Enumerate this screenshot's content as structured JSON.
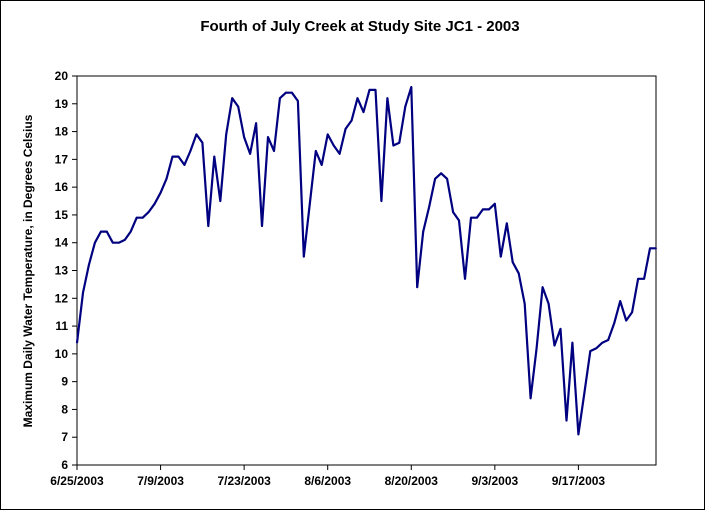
{
  "chart_data": {
    "type": "line",
    "title": "Fourth of July Creek at Study Site JC1 - 2003",
    "xlabel": "",
    "ylabel": "Maximum Daily Water Temperature, in Degrees Celsius",
    "ylim": [
      6,
      20
    ],
    "yticks": [
      "6",
      "7",
      "8",
      "9",
      "10",
      "11",
      "12",
      "13",
      "14",
      "15",
      "16",
      "17",
      "18",
      "19",
      "20"
    ],
    "xlim": [
      "6/25/2003",
      "9/30/2003"
    ],
    "xticks": [
      "6/25/2003",
      "7/9/2003",
      "7/23/2003",
      "8/6/2003",
      "8/20/2003",
      "9/3/2003",
      "9/17/2003"
    ],
    "grid": false,
    "legend": "none",
    "series": [
      {
        "color": "#000080",
        "x": [
          "6/25/2003",
          "6/26/2003",
          "6/27/2003",
          "6/28/2003",
          "6/29/2003",
          "6/30/2003",
          "7/1/2003",
          "7/2/2003",
          "7/3/2003",
          "7/4/2003",
          "7/5/2003",
          "7/6/2003",
          "7/7/2003",
          "7/8/2003",
          "7/9/2003",
          "7/10/2003",
          "7/11/2003",
          "7/12/2003",
          "7/13/2003",
          "7/14/2003",
          "7/15/2003",
          "7/16/2003",
          "7/17/2003",
          "7/18/2003",
          "7/19/2003",
          "7/20/2003",
          "7/21/2003",
          "7/22/2003",
          "7/23/2003",
          "7/24/2003",
          "7/25/2003",
          "7/26/2003",
          "7/27/2003",
          "7/28/2003",
          "7/29/2003",
          "7/30/2003",
          "7/31/2003",
          "8/1/2003",
          "8/2/2003",
          "8/3/2003",
          "8/4/2003",
          "8/5/2003",
          "8/6/2003",
          "8/7/2003",
          "8/8/2003",
          "8/9/2003",
          "8/10/2003",
          "8/11/2003",
          "8/12/2003",
          "8/13/2003",
          "8/14/2003",
          "8/15/2003",
          "8/16/2003",
          "8/17/2003",
          "8/18/2003",
          "8/19/2003",
          "8/20/2003",
          "8/21/2003",
          "8/22/2003",
          "8/23/2003",
          "8/24/2003",
          "8/25/2003",
          "8/26/2003",
          "8/27/2003",
          "8/28/2003",
          "8/29/2003",
          "8/30/2003",
          "8/31/2003",
          "9/1/2003",
          "9/2/2003",
          "9/3/2003",
          "9/4/2003",
          "9/5/2003",
          "9/6/2003",
          "9/7/2003",
          "9/8/2003",
          "9/9/2003",
          "9/10/2003",
          "9/11/2003",
          "9/12/2003",
          "9/13/2003",
          "9/14/2003",
          "9/15/2003",
          "9/16/2003",
          "9/17/2003",
          "9/18/2003",
          "9/19/2003",
          "9/20/2003",
          "9/21/2003",
          "9/22/2003",
          "9/23/2003",
          "9/24/2003",
          "9/25/2003",
          "9/26/2003",
          "9/27/2003",
          "9/28/2003",
          "9/29/2003",
          "9/30/2003"
        ],
        "values": [
          10.4,
          12.2,
          13.2,
          14.0,
          14.4,
          14.4,
          14.0,
          14.0,
          14.1,
          14.4,
          14.9,
          14.9,
          15.1,
          15.4,
          15.8,
          16.3,
          17.1,
          17.1,
          16.8,
          17.3,
          17.9,
          17.6,
          14.6,
          17.1,
          15.5,
          17.9,
          19.2,
          18.9,
          17.8,
          17.2,
          18.3,
          14.6,
          17.8,
          17.3,
          19.2,
          19.4,
          19.4,
          19.1,
          13.5,
          15.4,
          17.3,
          16.8,
          17.9,
          17.5,
          17.2,
          18.1,
          18.4,
          19.2,
          18.7,
          19.5,
          19.5,
          15.5,
          19.2,
          17.5,
          17.6,
          18.9,
          19.6,
          12.4,
          14.4,
          15.3,
          16.3,
          16.5,
          16.3,
          15.1,
          14.8,
          12.7,
          14.9,
          14.9,
          15.2,
          15.2,
          15.4,
          13.5,
          14.7,
          13.3,
          12.9,
          11.8,
          8.4,
          10.2,
          12.4,
          11.8,
          10.3,
          10.9,
          7.6,
          10.4,
          7.1,
          8.6,
          10.1,
          10.2,
          10.4,
          10.5,
          11.1,
          11.9,
          11.2,
          11.5,
          12.7,
          12.7,
          13.8,
          13.8
        ]
      }
    ]
  }
}
